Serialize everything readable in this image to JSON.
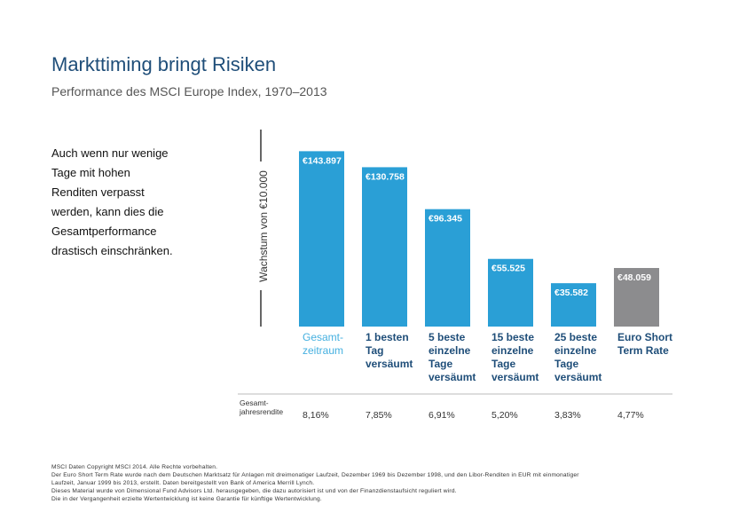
{
  "header": {
    "title": "Markttiming bringt Risiken",
    "subtitle": "Performance des MSCI Europe Index, 1970–2013"
  },
  "note_lines": [
    "Auch wenn nur wenige",
    "Tage mit hohen",
    "Renditen verpasst",
    "werden, kann dies die",
    "Gesamtperformance",
    "drastisch einschränken."
  ],
  "chart_data": {
    "type": "bar",
    "ylabel": "Wachstum von €10.000",
    "ylim": [
      0,
      150000
    ],
    "categories": [
      [
        "Gesamt-",
        "zeitraum"
      ],
      [
        "1 besten",
        "Tag",
        "versäumt"
      ],
      [
        "5 beste",
        "einzelne",
        "Tage",
        "versäumt"
      ],
      [
        "15 beste",
        "einzelne",
        "Tage",
        "versäumt"
      ],
      [
        "25 beste",
        "einzelne",
        "Tage",
        "versäumt"
      ],
      [
        "Euro Short",
        "Term Rate"
      ]
    ],
    "values": [
      143897,
      130758,
      96345,
      55525,
      35582,
      48059
    ],
    "value_labels": [
      "€143.897",
      "€130.758",
      "€96.345",
      "€55.525",
      "€35.582",
      "€48.059"
    ],
    "returns_label": [
      "Gesamt-",
      "jahresrendite"
    ],
    "returns": [
      "8,16%",
      "7,85%",
      "6,91%",
      "5,20%",
      "3,83%",
      "4,77%"
    ],
    "colors": [
      "#2a9fd6",
      "#2a9fd6",
      "#2a9fd6",
      "#2a9fd6",
      "#2a9fd6",
      "#8c8c8e"
    ],
    "category_colors": [
      "#45b0e0",
      "#1f4e79",
      "#1f4e79",
      "#1f4e79",
      "#1f4e79",
      "#1f4e79"
    ]
  },
  "footer_lines": [
    "MSCI Daten Copyright MSCI 2014. Alle Rechte vorbehalten.",
    "Der Euro Short Term Rate wurde nach dem Deutschen Marktsatz für Anlagen mit dreimonatiger Laufzeit, Dezember 1969 bis Dezember 1998, und den Libor-Renditen in EUR mit einmonatiger",
    "Laufzeit, Januar 1999 bis 2013, erstellt. Daten bereitgestellt von Bank of America Merrill Lynch.",
    "Dieses Material wurde von Dimensional Fund Advisors Ltd. herausgegeben, die dazu autorisiert ist und von der Finanzdienstaufsicht reguliert wird.",
    "Die in der Vergangenheit erzielte Wertentwicklung ist keine Garantie für künftige Wertentwicklung."
  ]
}
